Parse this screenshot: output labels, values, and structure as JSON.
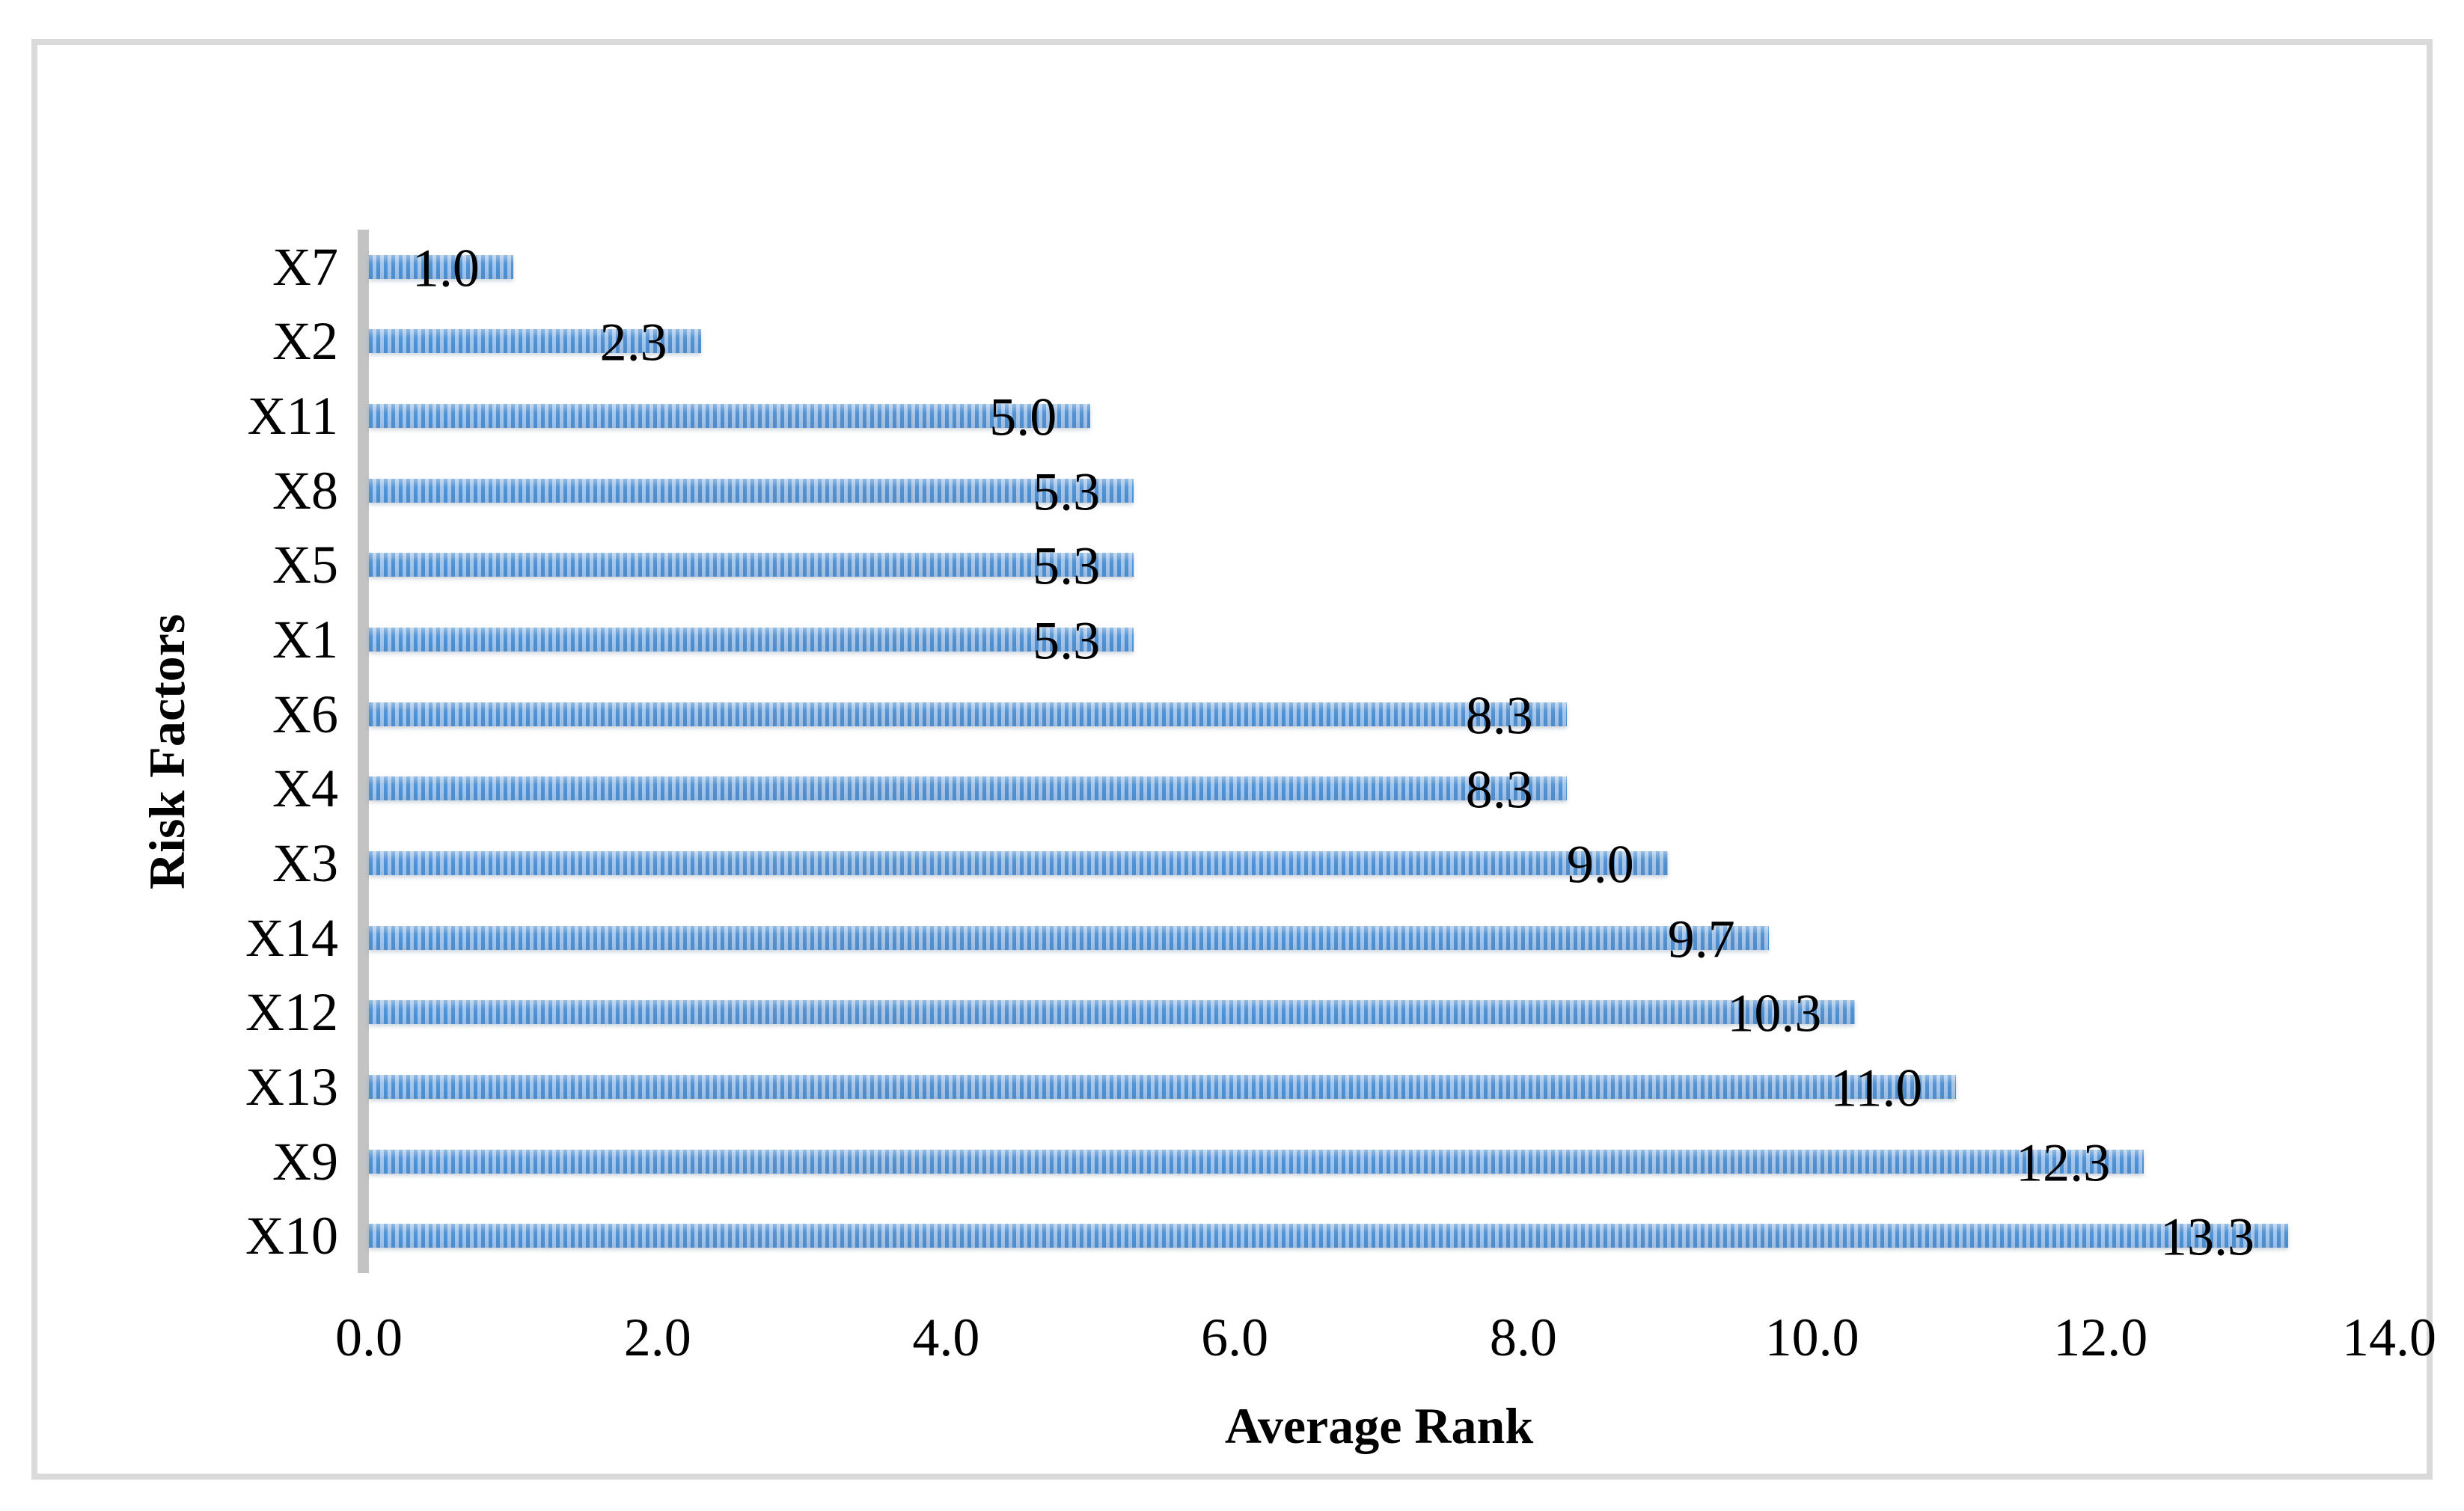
{
  "chart_data": {
    "type": "bar",
    "orientation": "horizontal",
    "title": "",
    "categories": [
      "X7",
      "X2",
      "X11",
      "X8",
      "X5",
      "X1",
      "X6",
      "X4",
      "X3",
      "X14",
      "X12",
      "X13",
      "X9",
      "X10"
    ],
    "values": [
      1.0,
      2.3,
      5.0,
      5.3,
      5.3,
      5.3,
      8.3,
      8.3,
      9.0,
      9.7,
      10.3,
      11.0,
      12.3,
      13.3
    ],
    "value_labels": [
      "1.0",
      "2.3",
      "5.0",
      "5.3",
      "5.3",
      "5.3",
      "8.3",
      "8.3",
      "9.0",
      "9.7",
      "10.3",
      "11.0",
      "12.3",
      "13.3"
    ],
    "xlabel": "Average Rank",
    "ylabel": "Risk Factors",
    "xlim": [
      0,
      14
    ],
    "xtick_step": 2,
    "xtick_labels": [
      "0.0",
      "2.0",
      "4.0",
      "6.0",
      "8.0",
      "10.0",
      "12.0",
      "14.0"
    ],
    "grid": "off",
    "legend": "none",
    "data_label_position": "inside-end",
    "colors": {
      "bar_stripe_dark": "#4f90d1",
      "bar_stripe_light": "#a4c4e9",
      "axis_line": "#c3c3c3",
      "frame_border": "#dadada",
      "text": "#000000",
      "background": "#ffffff"
    }
  }
}
